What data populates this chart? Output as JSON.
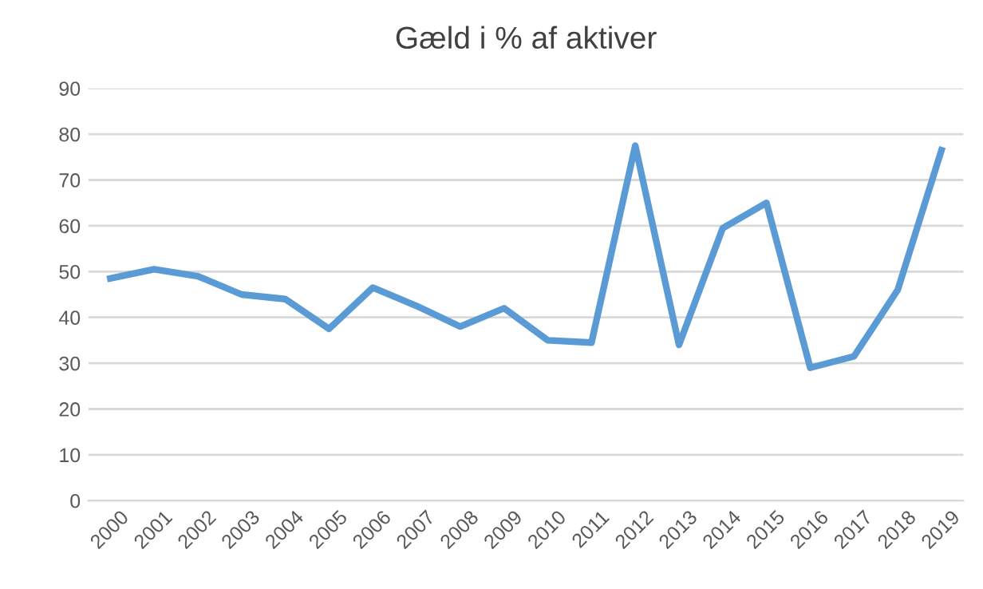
{
  "chart_data": {
    "type": "line",
    "title": "Gæld i % af aktiver",
    "categories": [
      "2000",
      "2001",
      "2002",
      "2003",
      "2004",
      "2005",
      "2006",
      "2007",
      "2008",
      "2009",
      "2010",
      "2011",
      "2012",
      "2013",
      "2014",
      "2015",
      "2016",
      "2017",
      "2018",
      "2019"
    ],
    "series": [
      {
        "color": "#5b9bd5",
        "values": [
          48.5,
          50.5,
          49,
          45,
          44,
          37.5,
          46.5,
          42.5,
          38,
          42,
          35,
          34.5,
          77.5,
          34,
          59.5,
          65,
          29,
          31.5,
          46,
          76.5
        ]
      }
    ],
    "ylim": [
      0,
      90
    ],
    "yticks": [
      0,
      10,
      20,
      30,
      40,
      50,
      60,
      70,
      80,
      90
    ],
    "grid": "y",
    "marker": "none",
    "line_style": "solid"
  }
}
